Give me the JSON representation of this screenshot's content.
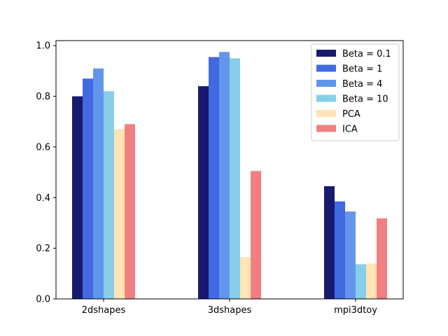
{
  "chart_data": {
    "type": "bar",
    "title": "",
    "xlabel": "",
    "ylabel": "",
    "ylim": [
      0,
      1.02
    ],
    "yticks": [
      "0.0",
      "0.2",
      "0.4",
      "0.6",
      "0.8",
      "1.0"
    ],
    "categories": [
      "2dshapes",
      "3dshapes",
      "mpi3dtoy"
    ],
    "legend_position": "top-right",
    "grid": false,
    "series": [
      {
        "name": "Beta = 0.1",
        "color": "#191970",
        "values": [
          0.8,
          0.84,
          0.445
        ]
      },
      {
        "name": "Beta = 1",
        "color": "#4169E1",
        "values": [
          0.87,
          0.955,
          0.385
        ]
      },
      {
        "name": "Beta = 4",
        "color": "#6495ED",
        "values": [
          0.91,
          0.975,
          0.345
        ]
      },
      {
        "name": "Beta = 10",
        "color": "#87CEEB",
        "values": [
          0.82,
          0.95,
          0.137
        ]
      },
      {
        "name": "PCA",
        "color": "#FFE4B5",
        "values": [
          0.67,
          0.165,
          0.14
        ]
      },
      {
        "name": "ICA",
        "color": "#F08080",
        "values": [
          0.69,
          0.505,
          0.318
        ]
      }
    ]
  }
}
